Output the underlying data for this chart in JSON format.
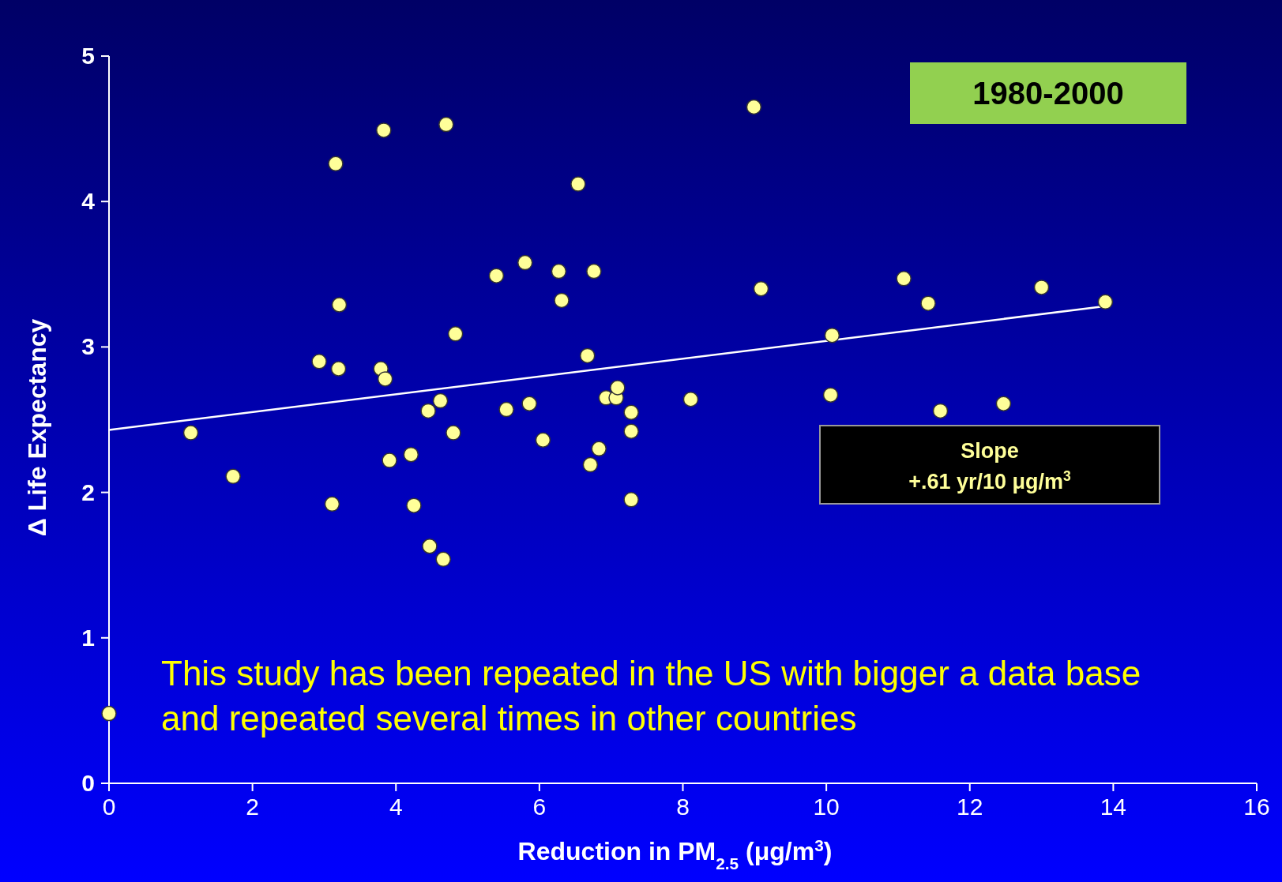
{
  "chart_data": {
    "type": "scatter",
    "xlabel": "Reduction in PM$_{2.5}$ (μg/m$^{3}$)",
    "ylabel": "Δ Life Expectancy",
    "xlim": [
      0,
      16
    ],
    "xticks": [
      0,
      2,
      4,
      6,
      8,
      10,
      12,
      14,
      16
    ],
    "ylim": [
      0,
      5
    ],
    "yticks": [
      0,
      1,
      2,
      3,
      4,
      5
    ],
    "grid": false,
    "marker": "circle",
    "annotations": [
      "1980-2000",
      "Slope",
      "+.61 yr/10 μg/m$^{3}$",
      "This study has been repeated in the US with bigger a data base and repeated several times in other countries"
    ],
    "series": [
      {
        "color": "#ffff99",
        "x": [
          0,
          1.14,
          1.73,
          2.93,
          3.11,
          3.16,
          3.2,
          3.21,
          3.79,
          3.83,
          3.85,
          3.91,
          4.21,
          4.25,
          4.45,
          4.47,
          4.62,
          4.66,
          4.7,
          4.8,
          4.83,
          5.4,
          5.54,
          5.8,
          5.86,
          6.05,
          6.27,
          6.31,
          6.54,
          6.67,
          6.71,
          6.76,
          6.83,
          6.93,
          7.07,
          7.09,
          7.28,
          7.28,
          7.28,
          8.11,
          8.99,
          9.09,
          10.06,
          10.08,
          11.08,
          11.42,
          11.59,
          12.47,
          13.0,
          13.89
        ],
        "values": [
          0.48,
          2.41,
          2.11,
          2.9,
          1.92,
          4.26,
          2.85,
          3.29,
          2.85,
          4.49,
          2.78,
          2.22,
          2.26,
          1.91,
          2.56,
          1.63,
          2.63,
          1.54,
          4.53,
          2.41,
          3.09,
          3.49,
          2.57,
          3.58,
          2.61,
          2.36,
          3.52,
          3.32,
          4.12,
          2.94,
          2.19,
          3.52,
          2.3,
          2.65,
          2.65,
          2.72,
          2.55,
          2.42,
          1.95,
          2.64,
          4.65,
          3.4,
          2.67,
          3.08,
          3.47,
          3.3,
          2.56,
          2.61,
          3.41,
          3.31
        ]
      },
      {
        "type": "line",
        "color": "#ffffff",
        "line_style": "solid",
        "marker": "none",
        "x": [
          0,
          13.89
        ],
        "values": [
          2.43,
          3.28
        ]
      }
    ]
  }
}
